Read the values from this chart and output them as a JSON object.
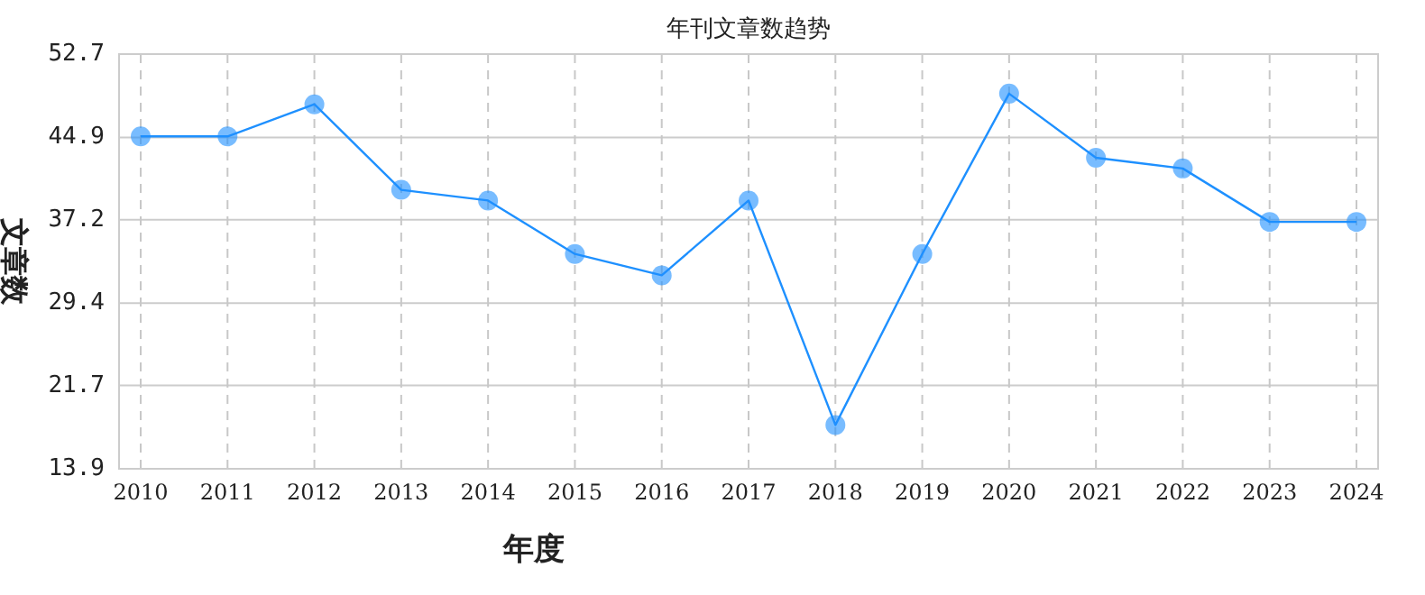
{
  "chart_data": {
    "type": "line",
    "title": "年刊文章数趋势",
    "xlabel": "年度",
    "ylabel": "文章数",
    "categories": [
      "2010",
      "2011",
      "2012",
      "2013",
      "2014",
      "2015",
      "2016",
      "2017",
      "2018",
      "2019",
      "2020",
      "2021",
      "2022",
      "2023",
      "2024"
    ],
    "series": [
      {
        "color": "#1e90ff",
        "values": [
          45,
          45,
          48,
          40,
          39,
          34,
          32,
          39,
          18,
          34,
          49,
          43,
          42,
          37,
          37
        ]
      }
    ],
    "ylim": [
      13.9,
      52.7
    ],
    "yticks": [
      13.9,
      21.7,
      29.4,
      37.2,
      44.9,
      52.7
    ],
    "grid": true,
    "marker": "circle",
    "line_style": "solid"
  }
}
